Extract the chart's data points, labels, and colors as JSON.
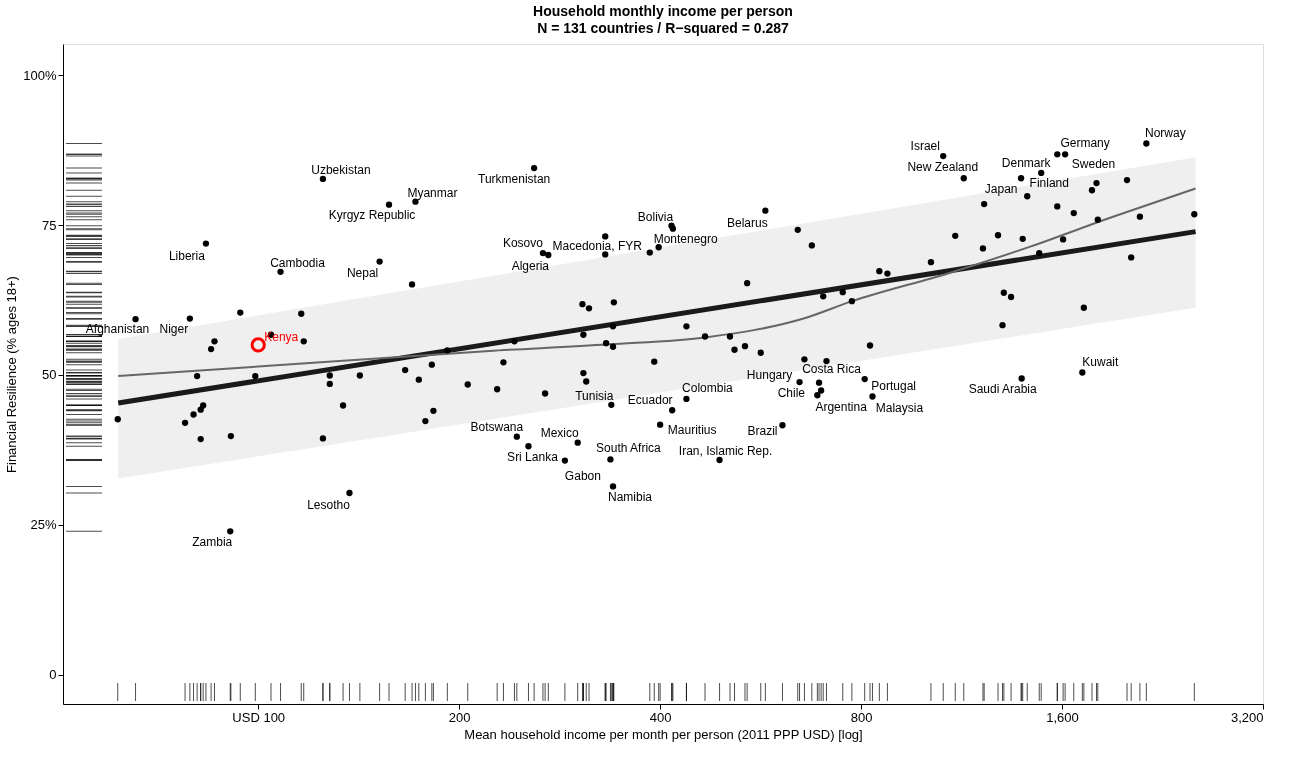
{
  "chart_data": {
    "type": "scatter",
    "title": "Household monthly income per person",
    "subtitle": "N = 131 countries / R−squared = 0.287",
    "xlabel": "Mean household income per month per person (2011 PPP USD) [log]",
    "ylabel": "Financial Resilience (% ages 18+)",
    "log": "x",
    "xlim": [
      51,
      3200
    ],
    "ylim": [
      -4.9,
      105.2
    ],
    "xticks": [
      {
        "value": 100,
        "label": "USD 100"
      },
      200,
      400,
      800,
      {
        "value": 1600,
        "label": "1,600"
      },
      {
        "value": 3200,
        "label": "3,200"
      }
    ],
    "yticks": [
      0,
      {
        "value": 25,
        "label": "25%"
      },
      50,
      75,
      {
        "value": 100,
        "label": "100%"
      }
    ],
    "series": [
      {
        "type": "scatter",
        "color": "#000000",
        "x": [
          125,
          157,
          172,
          83.5,
          108,
          152,
          170,
          65.5,
          79,
          94,
          116,
          86,
          85,
          104.5,
          117,
          81,
          99,
          128,
          128,
          142,
          166,
          174,
          182,
          192,
          206,
          61.6,
          77.7,
          80,
          82,
          82.7,
          82,
          91,
          125,
          134,
          178,
          183,
          137,
          90.8,
          259,
          416,
          418,
          575,
          267,
          272,
          331,
          331,
          386,
          398,
          643,
          675,
          540,
          306,
          313,
          341,
          702,
          751,
          852,
          876,
          340,
          438,
          307,
          467,
          509,
          775,
          242,
          332,
          340,
          517,
          536,
          566,
          825,
          233,
          392,
          658,
          710,
          228,
          269,
          307,
          310,
          338,
          417,
          438,
          647,
          692,
          697,
          688,
          810,
          832,
          244,
          254,
          301,
          288,
          337,
          340,
          400,
          491,
          610,
          1062,
          1140,
          1389,
          1489,
          1574,
          1617,
          2140,
          1419,
          1802,
          1774,
          2002,
          1223,
          1574,
          1666,
          1810,
          2093,
          2525,
          1107,
          1283,
          1397,
          1606,
          1218,
          1479,
          1018,
          2031,
          1309,
          1342,
          1725,
          1303,
          1392,
          1716
        ],
        "values": [
          82.7,
          78.4,
          78.9,
          71.9,
          67.2,
          68.9,
          65.1,
          59.3,
          59.4,
          60.4,
          60.2,
          55.6,
          54.3,
          56.7,
          55.6,
          49.8,
          49.8,
          49.9,
          48.5,
          49.9,
          50.8,
          49.2,
          51.7,
          54.1,
          48.4,
          42.6,
          42.0,
          43.4,
          44.2,
          44.9,
          39.3,
          39.8,
          39.4,
          44.9,
          42.3,
          44.0,
          30.3,
          23.9,
          84.5,
          74.9,
          74.4,
          77.4,
          70.3,
          70.0,
          73.1,
          70.1,
          70.4,
          71.3,
          74.2,
          71.6,
          65.3,
          61.8,
          61.1,
          62.1,
          63.1,
          63.8,
          67.3,
          66.9,
          58.1,
          58.1,
          56.7,
          56.4,
          56.4,
          62.3,
          55.6,
          55.3,
          54.7,
          54.2,
          54.8,
          53.7,
          54.9,
          52.1,
          52.2,
          52.6,
          52.3,
          47.6,
          46.9,
          50.3,
          48.9,
          45.0,
          44.1,
          46.0,
          48.8,
          48.7,
          47.4,
          46.6,
          49.3,
          46.4,
          39.7,
          38.1,
          38.7,
          35.7,
          35.9,
          31.4,
          41.7,
          35.8,
          41.6,
          86.5,
          82.8,
          82.8,
          83.7,
          86.8,
          86.8,
          88.6,
          79.8,
          82.0,
          80.8,
          82.5,
          78.5,
          78.1,
          77.0,
          75.9,
          76.4,
          76.8,
          73.2,
          73.3,
          72.7,
          72.6,
          71.1,
          70.3,
          68.8,
          69.6,
          63.7,
          63.0,
          61.2,
          58.3,
          49.4,
          50.4
        ]
      },
      {
        "type": "scatter",
        "name": "Kenya",
        "color": "#ff0000",
        "x": [
          100
        ],
        "values": [
          55.0
        ]
      },
      {
        "type": "line",
        "color": "#1a1a1a",
        "x": [
          61.7,
          2536
        ],
        "values": [
          45.3,
          73.9
        ],
        "lower": [
          32.7,
          61.2
        ],
        "upper": [
          56.0,
          86.3
        ]
      },
      {
        "type": "line",
        "color": "#666666",
        "x": [
          61.7,
          100,
          222,
          335,
          470,
          656,
          776,
          1085,
          1434,
          1898,
          2536
        ],
        "values": [
          49.8,
          51.4,
          54.0,
          55.1,
          56.3,
          59.4,
          62.3,
          67.0,
          71.4,
          76.3,
          81.1
        ]
      }
    ],
    "annotations": [
      {
        "text": "Uzbekistan",
        "x": 125,
        "y": 82.7
      },
      {
        "text": "Kyrgyz Republic",
        "x": 157,
        "y": 78.4
      },
      {
        "text": "Myanmar",
        "x": 172,
        "y": 78.9
      },
      {
        "text": "Liberia",
        "x": 83.5,
        "y": 71.9
      },
      {
        "text": "Cambodia",
        "x": 108,
        "y": 67.2
      },
      {
        "text": "Nepal",
        "x": 152,
        "y": 68.9
      },
      {
        "text": "Afghanistan",
        "x": 65.5,
        "y": 59.3
      },
      {
        "text": "Niger",
        "x": 79,
        "y": 59.4
      },
      {
        "text": "Lesotho",
        "x": 137,
        "y": 30.3
      },
      {
        "text": "Zambia",
        "x": 90.8,
        "y": 23.9
      },
      {
        "text": "Turkmenistan",
        "x": 259,
        "y": 84.5
      },
      {
        "text": "Bolivia",
        "x": 416,
        "y": 74.9
      },
      {
        "text": "Belarus",
        "x": 575,
        "y": 77.4
      },
      {
        "text": "Kosovo",
        "x": 267,
        "y": 70.3
      },
      {
        "text": "Algeria",
        "x": 272,
        "y": 70.0
      },
      {
        "text": "Macedonia, FYR",
        "x": 331,
        "y": 70.1
      },
      {
        "text": "Montenegro",
        "x": 398,
        "y": 71.3
      },
      {
        "text": "Tunisia",
        "x": 338,
        "y": 45.0
      },
      {
        "text": "Ecuador",
        "x": 417,
        "y": 44.1
      },
      {
        "text": "Colombia",
        "x": 438,
        "y": 46.0
      },
      {
        "text": "Hungary",
        "x": 647,
        "y": 48.8
      },
      {
        "text": "Costa Rica",
        "x": 710,
        "y": 52.3
      },
      {
        "text": "Chile",
        "x": 688,
        "y": 46.6
      },
      {
        "text": "Argentina",
        "x": 697,
        "y": 47.4
      },
      {
        "text": "Portugal",
        "x": 810,
        "y": 49.3
      },
      {
        "text": "Malaysia",
        "x": 832,
        "y": 46.4
      },
      {
        "text": "Botswana",
        "x": 244,
        "y": 39.7
      },
      {
        "text": "Sri Lanka",
        "x": 254,
        "y": 38.1
      },
      {
        "text": "Mexico",
        "x": 301,
        "y": 38.7
      },
      {
        "text": "Gabon",
        "x": 288,
        "y": 35.7
      },
      {
        "text": "South Africa",
        "x": 337,
        "y": 35.9
      },
      {
        "text": "Namibia",
        "x": 340,
        "y": 31.4
      },
      {
        "text": "Mauritius",
        "x": 400,
        "y": 41.7
      },
      {
        "text": "Iran, Islamic Rep.",
        "x": 491,
        "y": 35.8
      },
      {
        "text": "Brazil",
        "x": 610,
        "y": 41.6
      },
      {
        "text": "Israel",
        "x": 1062,
        "y": 86.5
      },
      {
        "text": "New Zealand",
        "x": 1140,
        "y": 82.8
      },
      {
        "text": "Denmark",
        "x": 1489,
        "y": 83.7
      },
      {
        "text": "Finland",
        "x": 1419,
        "y": 79.8
      },
      {
        "text": "Japan",
        "x": 1223,
        "y": 78.5
      },
      {
        "text": "Germany",
        "x": 1617,
        "y": 86.8
      },
      {
        "text": "Norway",
        "x": 2140,
        "y": 88.6
      },
      {
        "text": "Sweden",
        "x": 1802,
        "y": 82.0
      },
      {
        "text": "Saudi Arabia",
        "x": 1392,
        "y": 49.4
      },
      {
        "text": "Kuwait",
        "x": 1716,
        "y": 50.4
      }
    ]
  }
}
